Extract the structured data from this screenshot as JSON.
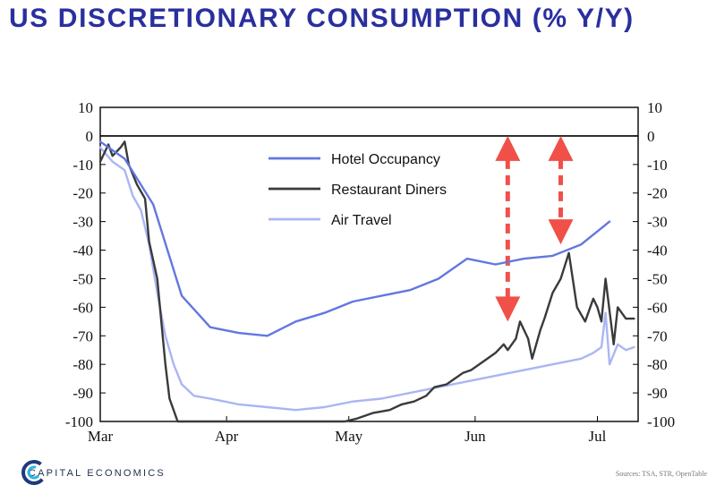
{
  "title": "US DISCRETIONARY CONSUMPTION (% Y/Y)",
  "brand": {
    "name": "CAPITAL ECONOMICS",
    "logo_icon": "capital-economics-logo"
  },
  "source": "Sources: TSA, STR, OpenTable",
  "colors": {
    "hotel": "#6377e0",
    "restaurant": "#3a3a3a",
    "air": "#aab6f3",
    "arrow": "#f05048",
    "title": "#2a2f9e"
  },
  "chart_data": {
    "type": "line",
    "title": "US DISCRETIONARY CONSUMPTION (% Y/Y)",
    "xlabel": "",
    "ylabel": "",
    "xlim": [
      "2020-03-01",
      "2020-07-11"
    ],
    "ylim": [
      -100,
      10
    ],
    "yticks": [
      10,
      0,
      -10,
      -20,
      -30,
      -40,
      -50,
      -60,
      -70,
      -80,
      -90,
      -100
    ],
    "ytick_labels": [
      "10",
      "0",
      "-10",
      "-20",
      "-30",
      "-40",
      "-50",
      "-60",
      "-70",
      "-80",
      "-90",
      "-100"
    ],
    "xticks": [
      {
        "date": "2020-03-01",
        "label": "Mar"
      },
      {
        "date": "2020-04-01",
        "label": "Apr"
      },
      {
        "date": "2020-05-01",
        "label": "May"
      },
      {
        "date": "2020-06-01",
        "label": "Jun"
      },
      {
        "date": "2020-07-01",
        "label": "Jul"
      }
    ],
    "grid": false,
    "zero_line": true,
    "axes": "left and right mirrored",
    "legend": {
      "placement": "top-center",
      "entries": [
        "Hotel Occupancy",
        "Restaurant Diners",
        "Air Travel"
      ]
    },
    "series": [
      {
        "name": "Hotel Occupancy",
        "points": [
          [
            "2020-03-01",
            -2
          ],
          [
            "2020-03-07",
            -8
          ],
          [
            "2020-03-14",
            -24
          ],
          [
            "2020-03-21",
            -56
          ],
          [
            "2020-03-28",
            -67
          ],
          [
            "2020-04-04",
            -69
          ],
          [
            "2020-04-11",
            -70
          ],
          [
            "2020-04-18",
            -65
          ],
          [
            "2020-04-25",
            -62
          ],
          [
            "2020-05-02",
            -58
          ],
          [
            "2020-05-09",
            -56
          ],
          [
            "2020-05-16",
            -54
          ],
          [
            "2020-05-23",
            -50
          ],
          [
            "2020-05-30",
            -43
          ],
          [
            "2020-06-06",
            -45
          ],
          [
            "2020-06-13",
            -43
          ],
          [
            "2020-06-20",
            -42
          ],
          [
            "2020-06-27",
            -38
          ],
          [
            "2020-07-04",
            -30
          ]
        ]
      },
      {
        "name": "Restaurant Diners",
        "points": [
          [
            "2020-03-01",
            -9
          ],
          [
            "2020-03-03",
            -3
          ],
          [
            "2020-03-04",
            -7
          ],
          [
            "2020-03-06",
            -4
          ],
          [
            "2020-03-07",
            -2
          ],
          [
            "2020-03-08",
            -10
          ],
          [
            "2020-03-10",
            -17
          ],
          [
            "2020-03-12",
            -22
          ],
          [
            "2020-03-13",
            -37
          ],
          [
            "2020-03-15",
            -50
          ],
          [
            "2020-03-17",
            -80
          ],
          [
            "2020-03-18",
            -92
          ],
          [
            "2020-03-20",
            -100
          ],
          [
            "2020-04-30",
            -100
          ],
          [
            "2020-05-03",
            -99
          ],
          [
            "2020-05-07",
            -97
          ],
          [
            "2020-05-11",
            -96
          ],
          [
            "2020-05-14",
            -94
          ],
          [
            "2020-05-17",
            -93
          ],
          [
            "2020-05-20",
            -91
          ],
          [
            "2020-05-22",
            -88
          ],
          [
            "2020-05-25",
            -87
          ],
          [
            "2020-05-27",
            -85
          ],
          [
            "2020-05-29",
            -83
          ],
          [
            "2020-05-31",
            -82
          ],
          [
            "2020-06-03",
            -79
          ],
          [
            "2020-06-06",
            -76
          ],
          [
            "2020-06-08",
            -73
          ],
          [
            "2020-06-09",
            -75
          ],
          [
            "2020-06-11",
            -71
          ],
          [
            "2020-06-12",
            -65
          ],
          [
            "2020-06-14",
            -71
          ],
          [
            "2020-06-15",
            -78
          ],
          [
            "2020-06-17",
            -68
          ],
          [
            "2020-06-18",
            -64
          ],
          [
            "2020-06-20",
            -55
          ],
          [
            "2020-06-22",
            -50
          ],
          [
            "2020-06-24",
            -41
          ],
          [
            "2020-06-26",
            -60
          ],
          [
            "2020-06-28",
            -65
          ],
          [
            "2020-06-30",
            -57
          ],
          [
            "2020-07-01",
            -60
          ],
          [
            "2020-07-02",
            -65
          ],
          [
            "2020-07-03",
            -50
          ],
          [
            "2020-07-05",
            -73
          ],
          [
            "2020-07-06",
            -60
          ],
          [
            "2020-07-08",
            -64
          ],
          [
            "2020-07-10",
            -64
          ]
        ]
      },
      {
        "name": "Air Travel",
        "points": [
          [
            "2020-03-01",
            -4
          ],
          [
            "2020-03-04",
            -9
          ],
          [
            "2020-03-07",
            -12
          ],
          [
            "2020-03-09",
            -21
          ],
          [
            "2020-03-11",
            -26
          ],
          [
            "2020-03-13",
            -38
          ],
          [
            "2020-03-15",
            -55
          ],
          [
            "2020-03-17",
            -70
          ],
          [
            "2020-03-19",
            -80
          ],
          [
            "2020-03-21",
            -87
          ],
          [
            "2020-03-24",
            -91
          ],
          [
            "2020-03-28",
            -92
          ],
          [
            "2020-04-04",
            -94
          ],
          [
            "2020-04-11",
            -95
          ],
          [
            "2020-04-18",
            -96
          ],
          [
            "2020-04-25",
            -95
          ],
          [
            "2020-05-02",
            -93
          ],
          [
            "2020-05-09",
            -92
          ],
          [
            "2020-05-16",
            -90
          ],
          [
            "2020-05-23",
            -88
          ],
          [
            "2020-05-30",
            -86
          ],
          [
            "2020-06-06",
            -84
          ],
          [
            "2020-06-13",
            -82
          ],
          [
            "2020-06-20",
            -80
          ],
          [
            "2020-06-27",
            -78
          ],
          [
            "2020-06-30",
            -76
          ],
          [
            "2020-07-02",
            -74
          ],
          [
            "2020-07-03",
            -62
          ],
          [
            "2020-07-04",
            -80
          ],
          [
            "2020-07-06",
            -73
          ],
          [
            "2020-07-08",
            -75
          ],
          [
            "2020-07-10",
            -74
          ]
        ]
      }
    ],
    "annotations": [
      {
        "type": "double-arrow",
        "date": "2020-06-09",
        "from": 0,
        "to": -65
      },
      {
        "type": "double-arrow",
        "date": "2020-06-22",
        "from": 0,
        "to": -38
      }
    ]
  }
}
